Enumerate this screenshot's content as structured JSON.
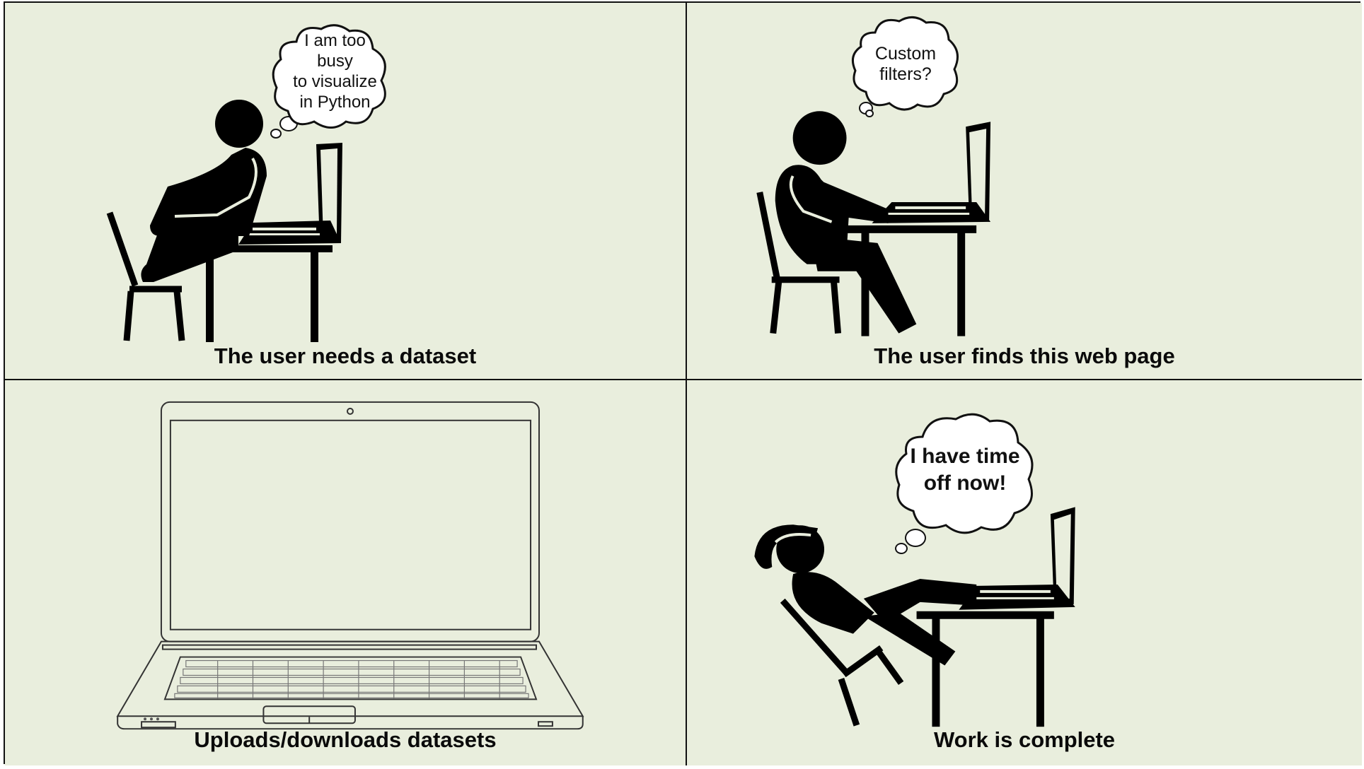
{
  "panels": [
    {
      "caption": "The user needs a dataset",
      "thought": "I am too\nbusy\nto visualize\nin Python"
    },
    {
      "caption": "The user finds this web page",
      "thought": "Custom\nfilters?"
    },
    {
      "caption": "Uploads/downloads datasets"
    },
    {
      "caption": "Work is complete",
      "thought": "I have time\noff now!"
    }
  ],
  "colors": {
    "background": "#e9eedd",
    "ink": "#111111",
    "bubble": "#ffffff"
  }
}
